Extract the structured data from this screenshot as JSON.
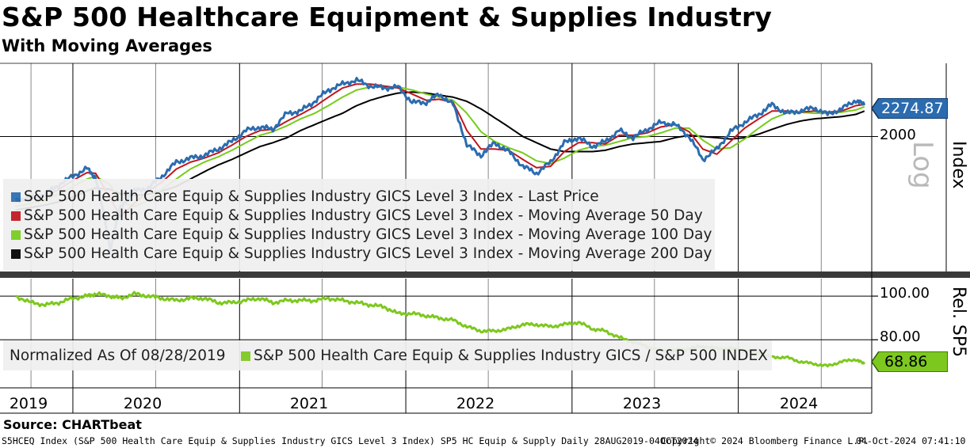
{
  "title": "S&P 500 Healthcare Equipment & Supplies Industry",
  "subtitle": "With Moving Averages",
  "source_label": "Source: CHARTbeat",
  "footer": {
    "left": "S5HCEQ Index (S&P 500 Health Care Equip & Supplies Industry GICS Level 3 Index) SP5 HC Equip & Supply  Daily 28AUG2019-04OCT2024",
    "middle": "Copyright© 2024 Bloomberg Finance L.P.",
    "right": "04-Oct-2024 07:41:10"
  },
  "colors": {
    "last_price": "#2b6cb0",
    "ma50": "#c0161e",
    "ma100": "#76cc1a",
    "ma200": "#000000",
    "ratio": "#7dc81f"
  },
  "chart_data": [
    {
      "type": "line",
      "panel": "price",
      "y_axis_label": "Index",
      "y_axis_scale_note": "Log",
      "y_scale": "log",
      "y_ticks": [
        2000
      ],
      "last_value_label": "2274.87",
      "legend": [
        {
          "name": "S&P 500 Health Care Equip & Supplies Industry GICS Level 3 Index - Last Price",
          "color": "#2b6cb0"
        },
        {
          "name": "S&P 500 Health Care Equip & Supplies Industry GICS Level 3 Index - Moving Average 50 Day",
          "color": "#c0161e"
        },
        {
          "name": "S&P 500 Health Care Equip & Supplies Industry GICS Level 3 Index - Moving Average 100 Day",
          "color": "#76cc1a"
        },
        {
          "name": "S&P 500 Health Care Equip & Supplies Industry GICS Level 3 Index - Moving Average 200 Day",
          "color": "#000000"
        }
      ],
      "x_dates": [
        "2019-08-28",
        "2019-10-01",
        "2019-11-01",
        "2019-12-01",
        "2020-01-01",
        "2020-02-01",
        "2020-02-20",
        "2020-03-23",
        "2020-04-15",
        "2020-05-15",
        "2020-06-15",
        "2020-07-15",
        "2020-08-15",
        "2020-09-15",
        "2020-10-15",
        "2020-11-15",
        "2020-12-15",
        "2021-01-15",
        "2021-02-15",
        "2021-03-15",
        "2021-04-15",
        "2021-05-15",
        "2021-06-15",
        "2021-07-15",
        "2021-08-15",
        "2021-09-15",
        "2021-10-15",
        "2021-11-15",
        "2021-12-15",
        "2022-01-15",
        "2022-02-15",
        "2022-03-15",
        "2022-04-15",
        "2022-05-15",
        "2022-06-15",
        "2022-07-15",
        "2022-08-15",
        "2022-09-15",
        "2022-10-15",
        "2022-11-15",
        "2022-12-15",
        "2023-01-15",
        "2023-02-15",
        "2023-03-15",
        "2023-04-15",
        "2023-05-15",
        "2023-06-15",
        "2023-07-15",
        "2023-08-15",
        "2023-09-15",
        "2023-10-15",
        "2023-11-15",
        "2023-12-15",
        "2024-01-15",
        "2024-02-15",
        "2024-03-15",
        "2024-04-15",
        "2024-05-15",
        "2024-06-15",
        "2024-07-15",
        "2024-08-15",
        "2024-09-15",
        "2024-10-04"
      ],
      "series": [
        {
          "name": "Last Price",
          "values": [
            1545,
            1555,
            1580,
            1640,
            1700,
            1755,
            1690,
            1260,
            1500,
            1600,
            1620,
            1700,
            1800,
            1830,
            1850,
            1900,
            1960,
            2050,
            2080,
            2060,
            2200,
            2220,
            2310,
            2420,
            2480,
            2520,
            2460,
            2440,
            2450,
            2300,
            2300,
            2380,
            2280,
            1930,
            1850,
            1950,
            1880,
            1770,
            1720,
            1800,
            1950,
            1990,
            1920,
            1960,
            2050,
            1990,
            2060,
            2120,
            2100,
            2000,
            1820,
            1900,
            2040,
            2120,
            2190,
            2280,
            2200,
            2220,
            2250,
            2190,
            2240,
            2320,
            2275
          ]
        },
        {
          "name": "Moving Average 50 Day",
          "values": [
            1530,
            1548,
            1565,
            1610,
            1670,
            1725,
            1720,
            1550,
            1440,
            1520,
            1600,
            1660,
            1750,
            1800,
            1830,
            1870,
            1930,
            2000,
            2050,
            2060,
            2130,
            2190,
            2260,
            2350,
            2440,
            2480,
            2480,
            2460,
            2440,
            2380,
            2320,
            2330,
            2300,
            2050,
            1900,
            1900,
            1890,
            1820,
            1760,
            1770,
            1880,
            1950,
            1950,
            1940,
            2010,
            2010,
            2030,
            2080,
            2100,
            2040,
            1900,
            1860,
            1960,
            2070,
            2150,
            2220,
            2220,
            2210,
            2220,
            2210,
            2220,
            2270,
            2280
          ]
        },
        {
          "name": "Moving Average 100 Day",
          "values": [
            1500,
            1520,
            1545,
            1580,
            1630,
            1680,
            1700,
            1640,
            1530,
            1500,
            1540,
            1610,
            1680,
            1750,
            1800,
            1840,
            1890,
            1950,
            2010,
            2040,
            2090,
            2150,
            2200,
            2270,
            2350,
            2420,
            2450,
            2450,
            2450,
            2420,
            2380,
            2350,
            2320,
            2200,
            2040,
            1960,
            1910,
            1870,
            1810,
            1790,
            1830,
            1890,
            1920,
            1930,
            1960,
            1990,
            2000,
            2030,
            2070,
            2070,
            1970,
            1900,
            1910,
            1980,
            2070,
            2150,
            2200,
            2210,
            2200,
            2200,
            2210,
            2230,
            2260
          ]
        },
        {
          "name": "Moving Average 200 Day",
          "values": [
            1480,
            1495,
            1510,
            1530,
            1560,
            1600,
            1620,
            1610,
            1580,
            1570,
            1580,
            1600,
            1630,
            1680,
            1730,
            1780,
            1820,
            1870,
            1920,
            1950,
            1990,
            2050,
            2100,
            2150,
            2200,
            2270,
            2320,
            2360,
            2390,
            2400,
            2390,
            2370,
            2350,
            2310,
            2240,
            2160,
            2080,
            2000,
            1950,
            1900,
            1880,
            1880,
            1880,
            1890,
            1920,
            1940,
            1950,
            1960,
            1990,
            2010,
            2000,
            1990,
            1980,
            1990,
            2020,
            2060,
            2100,
            2130,
            2150,
            2160,
            2170,
            2190,
            2220
          ]
        }
      ]
    },
    {
      "type": "line",
      "panel": "relative",
      "y_axis_label": "Rel. SP5",
      "y_ticks": [
        100.0,
        80.0
      ],
      "last_value_label": "68.86",
      "legend": [
        {
          "name": "Normalized As Of 08/28/2019",
          "color": ""
        },
        {
          "name": "S&P 500 Health Care Equip & Supplies Industry GICS / S&P 500 INDEX",
          "color": "#7dc81f"
        }
      ],
      "series": [
        {
          "name": "S&P 500 Health Care Equip & Supplies Industry GICS / S&P 500 INDEX",
          "values": [
            100,
            97,
            96,
            97,
            99,
            100,
            101,
            100,
            99,
            101,
            100,
            99,
            98,
            99,
            99,
            97,
            97,
            98,
            99,
            97,
            98,
            98,
            98,
            99,
            98,
            97,
            96,
            95,
            92,
            92,
            91,
            90,
            89,
            86,
            84,
            84,
            85,
            87,
            87,
            86,
            87,
            88,
            85,
            84,
            81,
            79,
            77,
            75,
            75,
            76,
            77,
            76,
            76,
            75,
            74,
            72,
            72,
            70,
            69,
            68,
            70,
            71,
            68.86
          ]
        }
      ]
    }
  ],
  "x_axis": {
    "year_labels": [
      "2019",
      "2020",
      "2021",
      "2022",
      "2023",
      "2024"
    ]
  }
}
